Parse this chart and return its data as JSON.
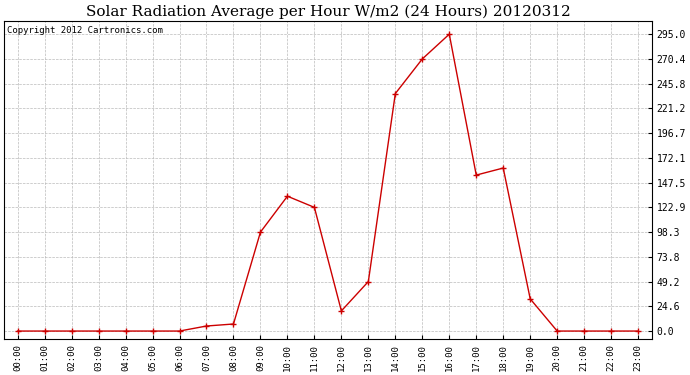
{
  "title": "Solar Radiation Average per Hour W/m2 (24 Hours) 20120312",
  "copyright": "Copyright 2012 Cartronics.com",
  "hours": [
    "00:00",
    "01:00",
    "02:00",
    "03:00",
    "04:00",
    "05:00",
    "06:00",
    "07:00",
    "08:00",
    "09:00",
    "10:00",
    "11:00",
    "12:00",
    "13:00",
    "14:00",
    "15:00",
    "16:00",
    "17:00",
    "18:00",
    "19:00",
    "20:00",
    "21:00",
    "22:00",
    "23:00"
  ],
  "values": [
    0,
    0,
    0,
    0,
    0,
    0,
    0,
    5,
    7,
    98.3,
    134,
    122.9,
    20,
    49.2,
    236,
    270.4,
    295.0,
    155,
    162,
    32,
    0,
    0,
    0,
    0
  ],
  "line_color": "#cc0000",
  "marker": "+",
  "marker_size": 4,
  "marker_linewidth": 1.0,
  "line_width": 1.0,
  "grid_color": "#bbbbbb",
  "grid_linestyle": "--",
  "background_color": "#ffffff",
  "title_fontsize": 11,
  "title_fontfamily": "serif",
  "yticks": [
    0.0,
    24.6,
    49.2,
    73.8,
    98.3,
    122.9,
    147.5,
    172.1,
    196.7,
    221.2,
    245.8,
    270.4,
    295.0
  ],
  "ytick_fontsize": 7,
  "xtick_fontsize": 6.5,
  "ylim_min": -8,
  "ylim_max": 308,
  "copyright_fontsize": 6.5,
  "copyright_color": "#000000"
}
